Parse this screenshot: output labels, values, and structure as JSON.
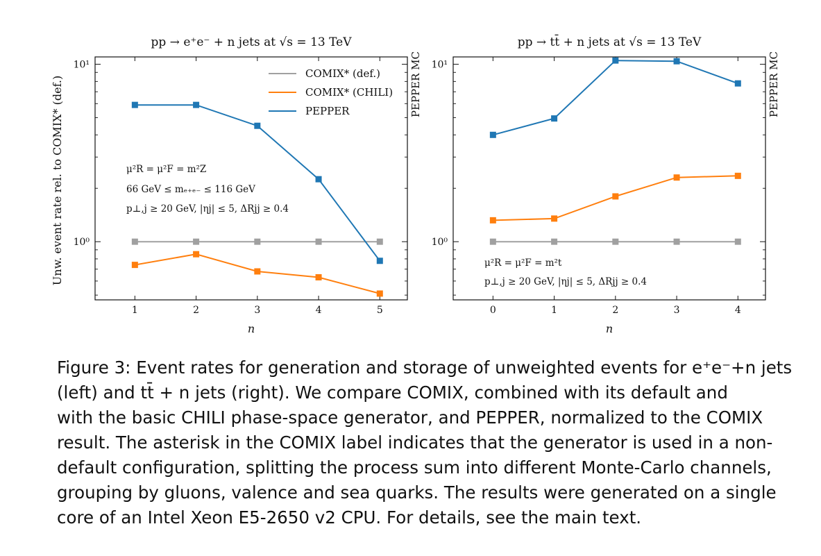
{
  "colors": {
    "comix_def": "#a0a0a0",
    "comix_chili": "#ff7f0e",
    "pepper": "#1f77b4",
    "axis": "#111111"
  },
  "y_axis_label": "Unw. event rate rel. to COMIX* (def.)",
  "legend": [
    {
      "label": "COMIX* (def.)",
      "color_key": "comix_def"
    },
    {
      "label": "COMIX* (CHILI)",
      "color_key": "comix_chili"
    },
    {
      "label": "PEPPER",
      "color_key": "pepper"
    }
  ],
  "chart_data": [
    {
      "type": "line",
      "title": "pp → e⁺e⁻ + n jets at √s = 13 TeV",
      "xlabel": "n",
      "right_label": "PEPPER MC",
      "yscale": "log",
      "ylim": [
        0.47,
        11.0
      ],
      "xlim": [
        0.35,
        5.45
      ],
      "x": [
        1,
        2,
        3,
        4,
        5
      ],
      "xticks": [
        "1",
        "2",
        "3",
        "4",
        "5"
      ],
      "yticks": [
        {
          "value": 1,
          "label": "10⁰"
        },
        {
          "value": 10,
          "label": "10¹"
        }
      ],
      "series": [
        {
          "name": "COMIX* (def.)",
          "color_key": "comix_def",
          "values": [
            1.0,
            1.0,
            1.0,
            1.0,
            1.0
          ]
        },
        {
          "name": "COMIX* (CHILI)",
          "color_key": "comix_chili",
          "values": [
            0.74,
            0.85,
            0.68,
            0.63,
            0.51
          ]
        },
        {
          "name": "PEPPER",
          "color_key": "pepper",
          "values": [
            5.9,
            5.9,
            4.5,
            2.25,
            0.78
          ]
        }
      ],
      "annotations": [
        "μ²R = μ²F = m²Z",
        "66 GeV ≤ mₑ₊ₑ₋ ≤ 116 GeV",
        "p⊥,j ≥ 20 GeV, |ηj| ≤ 5, ΔRjj ≥ 0.4"
      ]
    },
    {
      "type": "line",
      "title": "pp → tt̄ + n jets at √s = 13 TeV",
      "xlabel": "n",
      "right_label": "PEPPER MC",
      "yscale": "log",
      "ylim": [
        0.47,
        11.0
      ],
      "xlim": [
        -0.65,
        4.45
      ],
      "x": [
        0,
        1,
        2,
        3,
        4
      ],
      "xticks": [
        "0",
        "1",
        "2",
        "3",
        "4"
      ],
      "yticks": [
        {
          "value": 1,
          "label": "10⁰"
        },
        {
          "value": 10,
          "label": "10¹"
        }
      ],
      "series": [
        {
          "name": "COMIX* (def.)",
          "color_key": "comix_def",
          "values": [
            1.0,
            1.0,
            1.0,
            1.0,
            1.0
          ]
        },
        {
          "name": "COMIX* (CHILI)",
          "color_key": "comix_chili",
          "values": [
            1.32,
            1.35,
            1.8,
            2.3,
            2.35
          ]
        },
        {
          "name": "PEPPER",
          "color_key": "pepper",
          "values": [
            4.0,
            4.95,
            10.5,
            10.4,
            7.8
          ]
        }
      ],
      "annotations": [
        "μ²R = μ²F = m²t",
        "p⊥,j ≥ 20 GeV, |ηj| ≤ 5, ΔRjj ≥ 0.4"
      ]
    }
  ],
  "caption": {
    "lines": [
      "Figure 3: Event rates for generation and storage of unweighted events for e⁺e⁻+n jets",
      "(left) and tt̄ + n jets (right). We compare COMIX, combined with its default and",
      "with the basic CHILI phase-space generator, and PEPPER, normalized to the COMIX",
      "result. The asterisk in the COMIX label indicates that the generator is used in a non-",
      "default configuration, splitting the process sum into different Monte-Carlo channels,",
      "grouping by gluons, valence and sea quarks. The results were generated on a single",
      "core of an Intel Xeon E5-2650 v2 CPU. For details, see the main text."
    ]
  }
}
